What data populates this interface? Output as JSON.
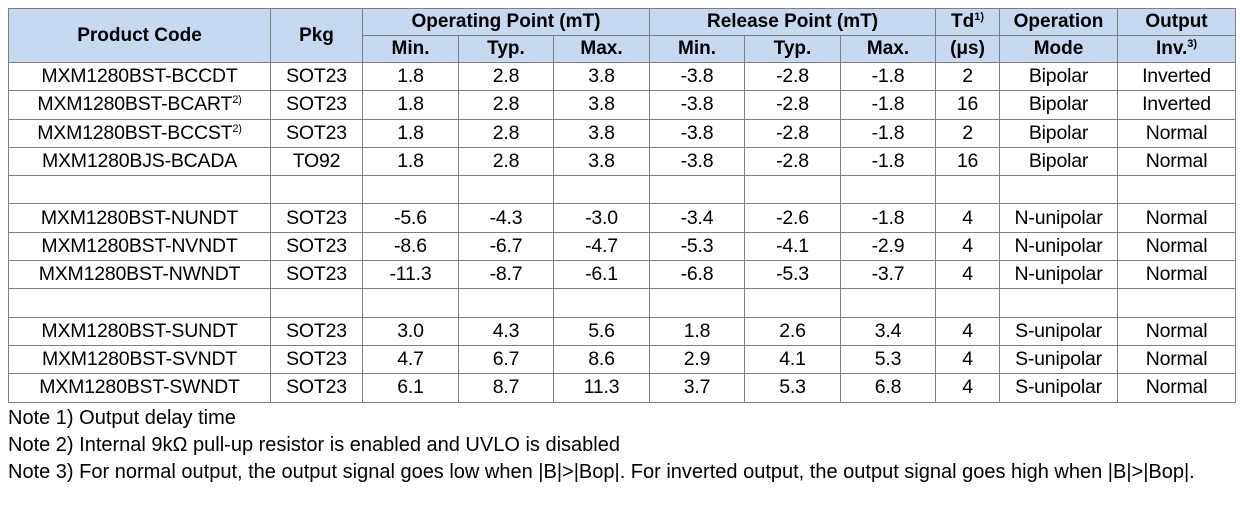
{
  "headers": {
    "product_code": "Product Code",
    "pkg": "Pkg",
    "operating_point": "Operating Point (mT)",
    "release_point": "Release Point (mT)",
    "td": "Td",
    "td_sup": "1)",
    "td_unit": "(μs)",
    "operation": "Operation",
    "mode": "Mode",
    "output": "Output",
    "inv": "Inv.",
    "inv_sup": "3)",
    "min": "Min.",
    "typ": "Typ.",
    "max": "Max."
  },
  "rows": [
    {
      "code": "MXM1280BST-BCCDT",
      "code_sup": "",
      "pkg": "SOT23",
      "op_min": "1.8",
      "op_typ": "2.8",
      "op_max": "3.8",
      "rp_min": "-3.8",
      "rp_typ": "-2.8",
      "rp_max": "-1.8",
      "td": "2",
      "mode": "Bipolar",
      "output": "Inverted"
    },
    {
      "code": "MXM1280BST-BCART",
      "code_sup": "2)",
      "pkg": "SOT23",
      "op_min": "1.8",
      "op_typ": "2.8",
      "op_max": "3.8",
      "rp_min": "-3.8",
      "rp_typ": "-2.8",
      "rp_max": "-1.8",
      "td": "16",
      "mode": "Bipolar",
      "output": "Inverted"
    },
    {
      "code": "MXM1280BST-BCCST",
      "code_sup": "2)",
      "pkg": "SOT23",
      "op_min": "1.8",
      "op_typ": "2.8",
      "op_max": "3.8",
      "rp_min": "-3.8",
      "rp_typ": "-2.8",
      "rp_max": "-1.8",
      "td": "2",
      "mode": "Bipolar",
      "output": "Normal"
    },
    {
      "code": "MXM1280BJS-BCADA",
      "code_sup": "",
      "pkg": "TO92",
      "op_min": "1.8",
      "op_typ": "2.8",
      "op_max": "3.8",
      "rp_min": "-3.8",
      "rp_typ": "-2.8",
      "rp_max": "-1.8",
      "td": "16",
      "mode": "Bipolar",
      "output": "Normal"
    },
    {
      "spacer": true
    },
    {
      "code": "MXM1280BST-NUNDT",
      "code_sup": "",
      "pkg": "SOT23",
      "op_min": "-5.6",
      "op_typ": "-4.3",
      "op_max": "-3.0",
      "rp_min": "-3.4",
      "rp_typ": "-2.6",
      "rp_max": "-1.8",
      "td": "4",
      "mode": "N-unipolar",
      "output": "Normal"
    },
    {
      "code": "MXM1280BST-NVNDT",
      "code_sup": "",
      "pkg": "SOT23",
      "op_min": "-8.6",
      "op_typ": "-6.7",
      "op_max": "-4.7",
      "rp_min": "-5.3",
      "rp_typ": "-4.1",
      "rp_max": "-2.9",
      "td": "4",
      "mode": "N-unipolar",
      "output": "Normal"
    },
    {
      "code": "MXM1280BST-NWNDT",
      "code_sup": "",
      "pkg": "SOT23",
      "op_min": "-11.3",
      "op_typ": "-8.7",
      "op_max": "-6.1",
      "rp_min": "-6.8",
      "rp_typ": "-5.3",
      "rp_max": "-3.7",
      "td": "4",
      "mode": "N-unipolar",
      "output": "Normal"
    },
    {
      "spacer": true
    },
    {
      "code": "MXM1280BST-SUNDT",
      "code_sup": "",
      "pkg": "SOT23",
      "op_min": "3.0",
      "op_typ": "4.3",
      "op_max": "5.6",
      "rp_min": "1.8",
      "rp_typ": "2.6",
      "rp_max": "3.4",
      "td": "4",
      "mode": "S-unipolar",
      "output": "Normal"
    },
    {
      "code": "MXM1280BST-SVNDT",
      "code_sup": "",
      "pkg": "SOT23",
      "op_min": "4.7",
      "op_typ": "6.7",
      "op_max": "8.6",
      "rp_min": "2.9",
      "rp_typ": "4.1",
      "rp_max": "5.3",
      "td": "4",
      "mode": "S-unipolar",
      "output": "Normal"
    },
    {
      "code": "MXM1280BST-SWNDT",
      "code_sup": "",
      "pkg": "SOT23",
      "op_min": "6.1",
      "op_typ": "8.7",
      "op_max": "11.3",
      "rp_min": "3.7",
      "rp_typ": "5.3",
      "rp_max": "6.8",
      "td": "4",
      "mode": "S-unipolar",
      "output": "Normal"
    }
  ],
  "notes": [
    "Note 1) Output delay time",
    "Note 2) Internal 9kΩ pull-up resistor is enabled and UVLO is disabled",
    "Note 3) For normal output, the output signal goes low when |B|>|Bop|. For inverted output, the output signal goes high when |B|>|Bop|."
  ],
  "colors": {
    "header_bg": "#c6d9f1",
    "border": "#7f7f7f"
  }
}
